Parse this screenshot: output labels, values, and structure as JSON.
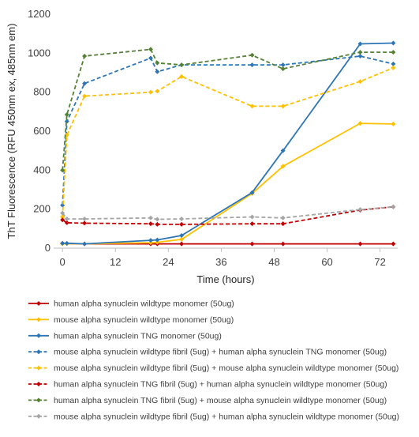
{
  "chart_data": {
    "type": "line",
    "xlabel": "Time (hours)",
    "ylabel": "ThT Fluorescence (RFU 450nm ex, 485nm em)",
    "xlim": [
      -2,
      76
    ],
    "ylim": [
      0,
      1200
    ],
    "xticks": [
      0,
      12,
      24,
      36,
      48,
      60,
      72
    ],
    "yticks": [
      0,
      200,
      400,
      600,
      800,
      1000,
      1200
    ],
    "grid": false,
    "legend_position": "bottom",
    "series": [
      {
        "name": "human alpha synuclein wildtype monomer (50ug)",
        "color": "#c00000",
        "dashed": false,
        "points": [
          [
            0,
            25
          ],
          [
            1,
            24
          ],
          [
            5,
            22
          ],
          [
            20,
            22
          ],
          [
            21.5,
            22
          ],
          [
            27,
            22
          ],
          [
            43,
            22
          ],
          [
            50,
            22
          ],
          [
            67.5,
            22
          ],
          [
            75,
            22
          ]
        ]
      },
      {
        "name": "mouse alpha synuclein wildtype monomer (50ug)",
        "color": "#ffc000",
        "dashed": false,
        "points": [
          [
            0,
            22
          ],
          [
            1,
            23
          ],
          [
            5,
            22
          ],
          [
            20,
            28
          ],
          [
            21.5,
            30
          ],
          [
            27,
            45
          ],
          [
            43,
            280
          ],
          [
            50,
            420
          ],
          [
            67.5,
            640
          ],
          [
            75,
            637
          ]
        ]
      },
      {
        "name": "human alpha synuclein TNG monomer (50ug)",
        "color": "#2e75b6",
        "dashed": false,
        "points": [
          [
            0,
            25
          ],
          [
            1,
            25
          ],
          [
            5,
            22
          ],
          [
            20,
            40
          ],
          [
            21.5,
            42
          ],
          [
            27,
            65
          ],
          [
            43,
            285
          ],
          [
            50,
            500
          ],
          [
            67.5,
            1048
          ],
          [
            75,
            1052
          ]
        ]
      },
      {
        "name": "mouse alpha synuclein wildtype fibril (5ug) + human alpha synuclein TNG monomer (50ug)",
        "color": "#2e75b6",
        "dashed": true,
        "points": [
          [
            0,
            220
          ],
          [
            1,
            650
          ],
          [
            5,
            845
          ],
          [
            20,
            975
          ],
          [
            21.5,
            905
          ],
          [
            27,
            940
          ],
          [
            43,
            940
          ],
          [
            50,
            940
          ],
          [
            67.5,
            985
          ],
          [
            75,
            945
          ]
        ]
      },
      {
        "name": "mouse alpha synuclein wildtype fibril (5ug) + mouse alpha synuclein wildtype monomer (50ug)",
        "color": "#ffc000",
        "dashed": true,
        "points": [
          [
            0,
            160
          ],
          [
            1,
            580
          ],
          [
            5,
            780
          ],
          [
            20,
            800
          ],
          [
            21.5,
            805
          ],
          [
            27,
            880
          ],
          [
            43,
            728
          ],
          [
            50,
            728
          ],
          [
            67.5,
            855
          ],
          [
            75,
            925
          ]
        ]
      },
      {
        "name": "human alpha synuclein TNG fibril (5ug) + human alpha synuclein wildtype monomer (50ug)",
        "color": "#c00000",
        "dashed": true,
        "points": [
          [
            0,
            145
          ],
          [
            1,
            130
          ],
          [
            5,
            128
          ],
          [
            20,
            125
          ],
          [
            21.5,
            122
          ],
          [
            27,
            122
          ],
          [
            43,
            125
          ],
          [
            50,
            125
          ],
          [
            67.5,
            195
          ],
          [
            75,
            212
          ]
        ]
      },
      {
        "name": "human alpha synuclein TNG fibril (5ug) + mouse alpha synuclein wildtype monomer (50ug)",
        "color": "#548235",
        "dashed": true,
        "points": [
          [
            0,
            400
          ],
          [
            1,
            685
          ],
          [
            5,
            985
          ],
          [
            20,
            1020
          ],
          [
            21.5,
            950
          ],
          [
            27,
            940
          ],
          [
            43,
            990
          ],
          [
            50,
            920
          ],
          [
            67.5,
            1005
          ],
          [
            75,
            1005
          ]
        ]
      },
      {
        "name": "mouse alpha synuclein wildtype fibril (5ug) + human alpha synuclein wildtype monomer (50ug)",
        "color": "#a5a5a5",
        "dashed": true,
        "points": [
          [
            0,
            180
          ],
          [
            1,
            150
          ],
          [
            5,
            150
          ],
          [
            20,
            155
          ],
          [
            21.5,
            148
          ],
          [
            27,
            150
          ],
          [
            43,
            160
          ],
          [
            50,
            155
          ],
          [
            67.5,
            198
          ],
          [
            75,
            212
          ]
        ]
      }
    ]
  }
}
